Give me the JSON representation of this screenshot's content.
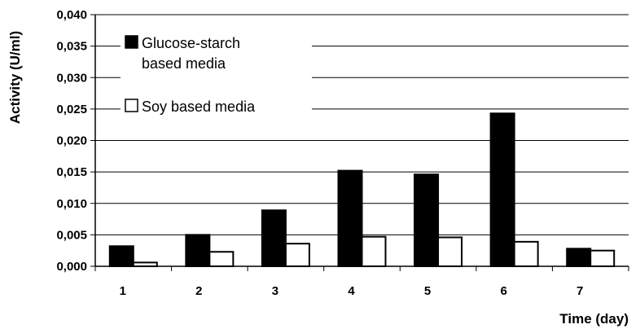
{
  "chart_data": {
    "type": "bar",
    "title": "",
    "xlabel": "Time (day)",
    "ylabel": "Activity (U/ml)",
    "categories": [
      "1",
      "2",
      "3",
      "4",
      "5",
      "6",
      "7"
    ],
    "series": [
      {
        "name": "Glucose-starch based media",
        "name_lines": [
          "Glucose-starch",
          "based media"
        ],
        "color": "#000000",
        "values": [
          0.0032,
          0.005,
          0.0089,
          0.0152,
          0.0146,
          0.0243,
          0.0028
        ]
      },
      {
        "name": "Soy based media",
        "name_lines": [
          "Soy based media"
        ],
        "color": "#ffffff",
        "values": [
          0.0006,
          0.0023,
          0.0036,
          0.0047,
          0.0046,
          0.0039,
          0.0025
        ]
      }
    ],
    "ylim": [
      0,
      0.04
    ],
    "yticks": [
      "0,000",
      "0,005",
      "0,010",
      "0,015",
      "0,020",
      "0,025",
      "0,030",
      "0,035",
      "0,040"
    ],
    "grid": true,
    "legend_position": "top-left"
  }
}
